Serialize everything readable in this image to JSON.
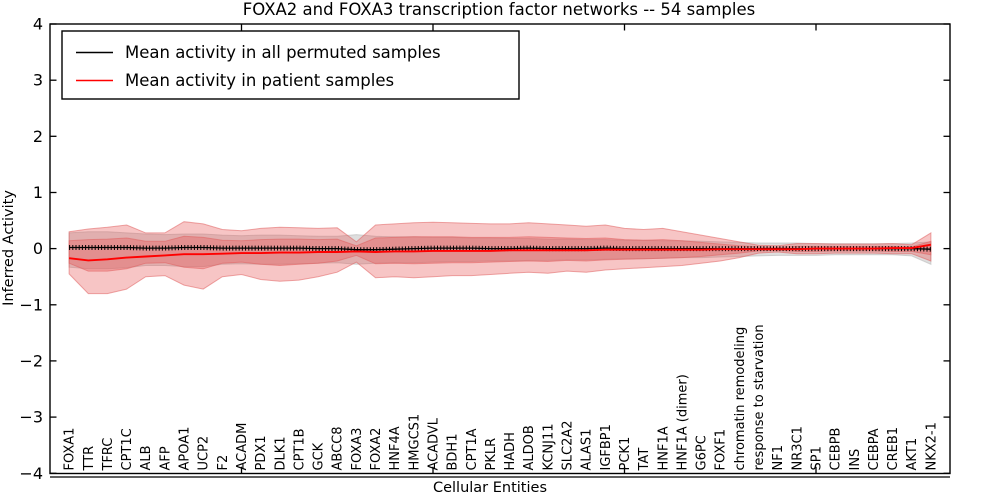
{
  "title": "FOXA2 and FOXA3 transcription factor networks -- 54 samples",
  "legend": {
    "position": "upper left",
    "items": [
      {
        "label": "Mean activity in all permuted samples",
        "color": "#000000"
      },
      {
        "label": "Mean activity in patient samples",
        "color": "#ff0000"
      }
    ]
  },
  "chart_data": {
    "type": "line",
    "title": "FOXA2 and FOXA3 transcription factor networks -- 54 samples",
    "xlabel": "Cellular Entities",
    "ylabel": "Inferred Activity",
    "ylim": [
      -4,
      4
    ],
    "xlim": [
      0,
      47
    ],
    "grid": false,
    "legend_position": "upper left",
    "ytick_labels": [
      "4",
      "3",
      "2",
      "1",
      "0",
      "−1",
      "−2",
      "−3",
      "−4"
    ],
    "ytick_values": [
      4,
      3,
      2,
      1,
      0,
      -1,
      -2,
      -3,
      -4
    ],
    "xtick_values": [
      10,
      20,
      30,
      40
    ],
    "categories": [
      "FOXA1",
      "TTR",
      "TFRC",
      "CPT1C",
      "ALB",
      "AFP",
      "APOA1",
      "UCP2",
      "F2",
      "ACADM",
      "PDX1",
      "DLK1",
      "CPT1B",
      "GCK",
      "ABCC8",
      "FOXA3",
      "FOXA2",
      "HNF4A",
      "HMGCS1",
      "ACADVL",
      "BDH1",
      "CPT1A",
      "PKLR",
      "HADH",
      "ALDOB",
      "KCNJ11",
      "SLC2A2",
      "ALAS1",
      "IGFBP1",
      "PCK1",
      "TAT",
      "HNF1A",
      "HNF1A (dimer)",
      "G6PC",
      "FOXF1",
      "chromatin remodeling",
      "response to starvation",
      "NF1",
      "NR3C1",
      "SP1",
      "CEBPB",
      "INS",
      "CEBPA",
      "CREB1",
      "AKT1",
      "NKX2-1"
    ],
    "series": [
      {
        "name": "Mean activity in all permuted samples",
        "color": "#000000",
        "values": [
          0.02,
          0.02,
          0.02,
          0.02,
          0.01,
          0.01,
          0.02,
          0.02,
          0.01,
          0.01,
          0.01,
          0.01,
          0.01,
          0.0,
          0.0,
          -0.02,
          -0.02,
          -0.01,
          0.0,
          0.01,
          0.01,
          0.01,
          0.0,
          0.0,
          0.01,
          0.0,
          0.0,
          0.0,
          0.01,
          0.0,
          0.0,
          0.0,
          0.0,
          0.0,
          0.0,
          0.0,
          0.0,
          0.0,
          0.0,
          0.0,
          0.0,
          0.0,
          0.0,
          0.0,
          0.0,
          -0.01
        ]
      },
      {
        "name": "Mean activity in patient samples",
        "color": "#ff0000",
        "values": [
          -0.17,
          -0.21,
          -0.19,
          -0.16,
          -0.14,
          -0.12,
          -0.1,
          -0.1,
          -0.09,
          -0.08,
          -0.08,
          -0.07,
          -0.07,
          -0.06,
          -0.06,
          -0.05,
          -0.06,
          -0.05,
          -0.05,
          -0.04,
          -0.04,
          -0.04,
          -0.04,
          -0.03,
          -0.03,
          -0.03,
          -0.03,
          -0.03,
          -0.02,
          -0.02,
          -0.02,
          -0.02,
          -0.02,
          -0.02,
          -0.01,
          -0.01,
          -0.01,
          -0.01,
          -0.01,
          0.0,
          0.0,
          0.0,
          0.0,
          0.01,
          0.01,
          0.07
        ]
      }
    ],
    "bands": [
      {
        "name": "permuted-samples-range",
        "fill": "#999999",
        "fill_opacity": 0.32,
        "edge": "#b5b5b5",
        "upper": [
          0.28,
          0.3,
          0.3,
          0.28,
          0.26,
          0.25,
          0.26,
          0.26,
          0.24,
          0.23,
          0.24,
          0.24,
          0.23,
          0.22,
          0.22,
          0.25,
          0.22,
          0.21,
          0.21,
          0.2,
          0.2,
          0.19,
          0.19,
          0.18,
          0.18,
          0.17,
          0.17,
          0.16,
          0.16,
          0.15,
          0.15,
          0.14,
          0.14,
          0.13,
          0.12,
          0.11,
          0.1,
          0.1,
          0.1,
          0.09,
          0.09,
          0.09,
          0.09,
          0.09,
          0.1,
          0.12
        ],
        "lower": [
          -0.33,
          -0.36,
          -0.36,
          -0.34,
          -0.3,
          -0.3,
          -0.32,
          -0.32,
          -0.28,
          -0.27,
          -0.28,
          -0.28,
          -0.27,
          -0.26,
          -0.25,
          -0.28,
          -0.26,
          -0.25,
          -0.25,
          -0.24,
          -0.23,
          -0.23,
          -0.22,
          -0.22,
          -0.21,
          -0.21,
          -0.2,
          -0.2,
          -0.19,
          -0.18,
          -0.18,
          -0.17,
          -0.16,
          -0.16,
          -0.15,
          -0.14,
          -0.13,
          -0.12,
          -0.12,
          -0.12,
          -0.11,
          -0.11,
          -0.11,
          -0.11,
          -0.13,
          -0.28
        ]
      },
      {
        "name": "patient-samples-range-outer",
        "fill": "#e85050",
        "fill_opacity": 0.33,
        "edge": "#e06060",
        "upper": [
          0.3,
          0.35,
          0.38,
          0.42,
          0.28,
          0.28,
          0.48,
          0.44,
          0.34,
          0.32,
          0.36,
          0.38,
          0.37,
          0.36,
          0.37,
          0.12,
          0.42,
          0.44,
          0.46,
          0.47,
          0.46,
          0.45,
          0.44,
          0.44,
          0.46,
          0.44,
          0.42,
          0.4,
          0.42,
          0.36,
          0.34,
          0.36,
          0.3,
          0.24,
          0.18,
          0.12,
          0.06,
          0.05,
          0.09,
          0.09,
          0.08,
          0.08,
          0.08,
          0.09,
          0.07,
          0.28
        ],
        "lower": [
          -0.45,
          -0.8,
          -0.8,
          -0.72,
          -0.5,
          -0.48,
          -0.65,
          -0.72,
          -0.5,
          -0.46,
          -0.55,
          -0.58,
          -0.56,
          -0.5,
          -0.42,
          -0.24,
          -0.52,
          -0.5,
          -0.52,
          -0.5,
          -0.48,
          -0.48,
          -0.46,
          -0.44,
          -0.42,
          -0.44,
          -0.4,
          -0.42,
          -0.38,
          -0.36,
          -0.34,
          -0.32,
          -0.3,
          -0.26,
          -0.22,
          -0.16,
          -0.08,
          -0.06,
          -0.09,
          -0.09,
          -0.08,
          -0.08,
          -0.08,
          -0.09,
          -0.09,
          -0.22
        ]
      },
      {
        "name": "patient-samples-range-inner",
        "fill": "#e85050",
        "fill_opacity": 0.33,
        "edge": "#e06060",
        "upper": [
          0.14,
          0.16,
          0.17,
          0.19,
          0.13,
          0.13,
          0.22,
          0.2,
          0.15,
          0.14,
          0.16,
          0.17,
          0.17,
          0.16,
          0.17,
          0.05,
          0.19,
          0.2,
          0.21,
          0.21,
          0.21,
          0.2,
          0.2,
          0.2,
          0.21,
          0.2,
          0.19,
          0.18,
          0.19,
          0.16,
          0.15,
          0.16,
          0.14,
          0.11,
          0.08,
          0.05,
          0.03,
          0.02,
          0.04,
          0.04,
          0.04,
          0.04,
          0.04,
          0.04,
          0.03,
          0.13
        ],
        "lower": [
          -0.26,
          -0.4,
          -0.4,
          -0.36,
          -0.26,
          -0.25,
          -0.33,
          -0.36,
          -0.26,
          -0.24,
          -0.28,
          -0.3,
          -0.28,
          -0.26,
          -0.22,
          -0.12,
          -0.27,
          -0.26,
          -0.27,
          -0.26,
          -0.25,
          -0.25,
          -0.24,
          -0.23,
          -0.22,
          -0.23,
          -0.21,
          -0.22,
          -0.2,
          -0.19,
          -0.18,
          -0.17,
          -0.16,
          -0.14,
          -0.11,
          -0.08,
          -0.04,
          -0.03,
          -0.05,
          -0.05,
          -0.04,
          -0.04,
          -0.04,
          -0.05,
          -0.05,
          -0.11
        ]
      }
    ]
  }
}
